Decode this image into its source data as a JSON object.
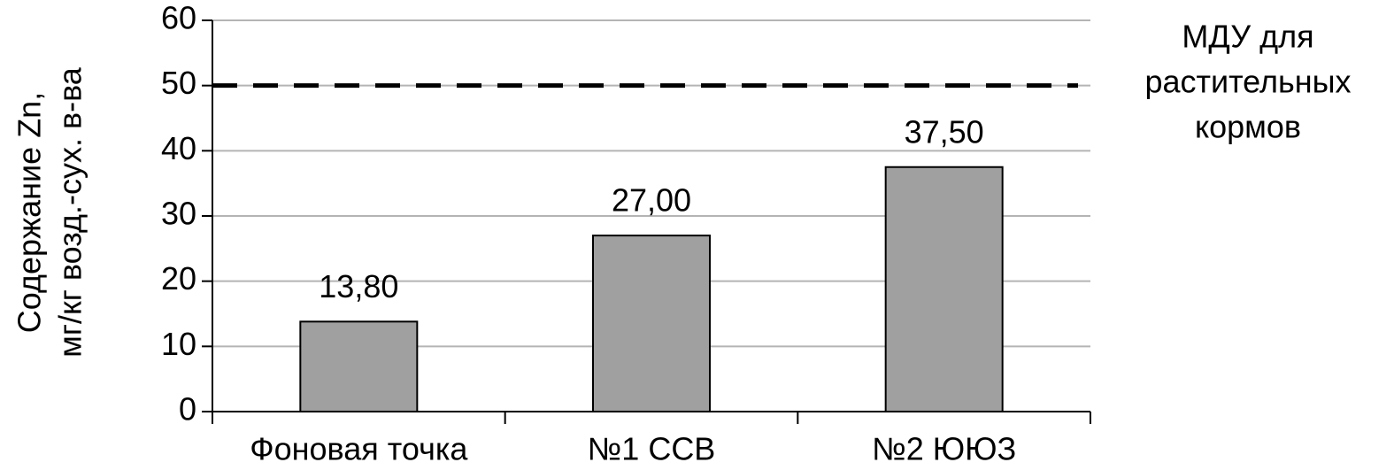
{
  "chart_data": {
    "type": "bar",
    "y_label": [
      "Содержание  Zn,",
      "мг/кг возд.-сух. в-ва"
    ],
    "categories": [
      "Фоновая точка",
      "№1 ССВ",
      "№2 ЮЮЗ"
    ],
    "values": [
      13.8,
      27,
      37.5
    ],
    "value_labels": [
      "13,80",
      "27,00",
      "37,50"
    ],
    "color": "#a0a0a0",
    "ylim": [
      0,
      60
    ],
    "yticks": [
      0,
      10,
      20,
      30,
      40,
      50,
      60
    ],
    "grid": true,
    "reference_line": {
      "value": 50,
      "label": [
        "МДУ для",
        "растительных",
        "кормов"
      ]
    }
  }
}
